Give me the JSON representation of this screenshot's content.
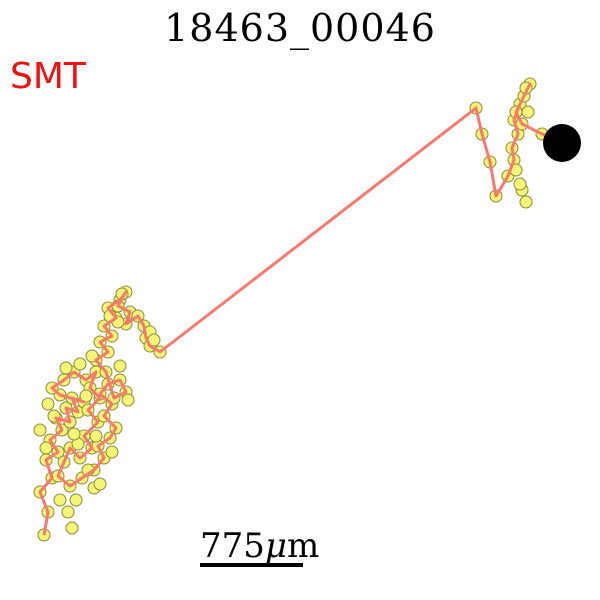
{
  "title": "18463_00046",
  "label": "SMT",
  "label_color": "#ee1111",
  "scale": {
    "value": "775",
    "unit_symbol": "μ",
    "unit_suffix": "m"
  },
  "colors": {
    "track_line": "#f87a6d",
    "marker_fill": "#f5f576",
    "marker_stroke": "#8a8a3a",
    "end_marker": "#000000"
  }
}
